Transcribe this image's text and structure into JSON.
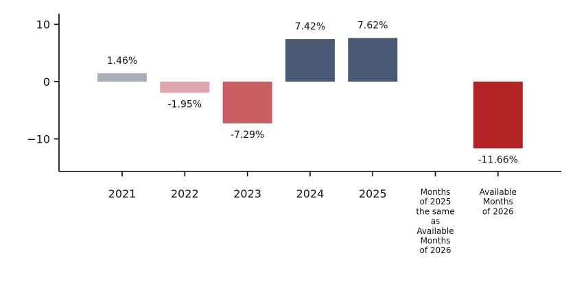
{
  "chart_data": {
    "type": "bar",
    "categories": [
      "2021",
      "2022",
      "2023",
      "2024",
      "2025",
      "Months of 2025 the same as Available Months of 2026",
      "Available Months of 2026"
    ],
    "category_lines": [
      [
        "2021"
      ],
      [
        "2022"
      ],
      [
        "2023"
      ],
      [
        "2024"
      ],
      [
        "2025"
      ],
      [
        "Months",
        "of 2025",
        "the same",
        "as",
        "Available",
        "Months",
        "of 2026"
      ],
      [
        "Available",
        "Months",
        "of 2026"
      ]
    ],
    "values": [
      1.46,
      -1.95,
      -7.29,
      7.42,
      7.62,
      null,
      -11.66
    ],
    "value_labels": [
      "1.46%",
      "-1.95%",
      "-7.29%",
      "7.42%",
      "7.62%",
      "",
      "-11.66%"
    ],
    "bar_colors": [
      "#a9afba",
      "#dba7aa",
      "#c85e5f",
      "#4b5a74",
      "#4b5a74",
      "",
      "#b12323"
    ],
    "yticks": [
      10,
      0,
      -10
    ],
    "ytick_labels": [
      "10",
      "0",
      "−10"
    ],
    "ylim": [
      -15.6,
      11.8
    ],
    "title": "",
    "xlabel": "",
    "ylabel": "",
    "grid": false,
    "legend": "none"
  }
}
